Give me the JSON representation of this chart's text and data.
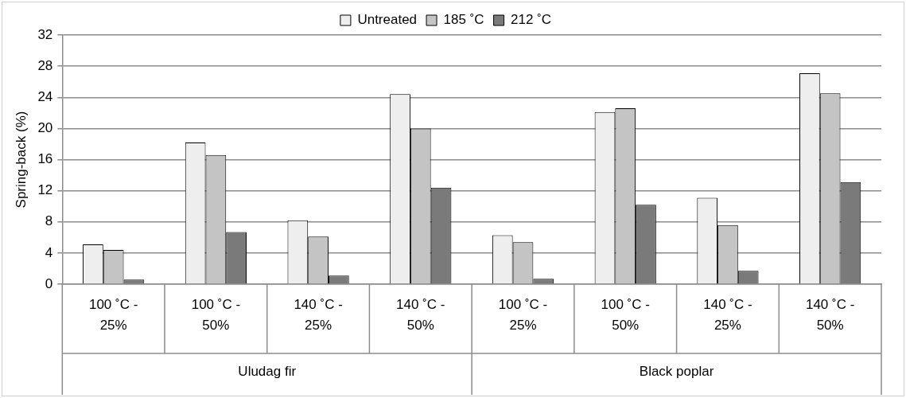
{
  "chart_data": {
    "type": "bar",
    "categories": [
      "100 ˚C - 25%",
      "100 ˚C - 50%",
      "140 ˚C - 25%",
      "140 ˚C - 50%",
      "100 ˚C - 25%",
      "100 ˚C - 50%",
      "140 ˚C - 25%",
      "140 ˚C - 50%"
    ],
    "series": [
      {
        "name": "Untreated",
        "color": "#eeeeee",
        "values": [
          5.1,
          18.2,
          8.2,
          24.4,
          6.3,
          22.1,
          11.1,
          27.1
        ]
      },
      {
        "name": "185 ˚C",
        "color": "#c4c4c4",
        "values": [
          4.4,
          16.6,
          6.1,
          20.0,
          5.4,
          22.6,
          7.6,
          24.5
        ]
      },
      {
        "name": "212 ˚C",
        "color": "#7a7a7a",
        "values": [
          0.6,
          6.7,
          1.1,
          12.4,
          0.7,
          10.2,
          1.7,
          13.1
        ]
      }
    ],
    "ylabel": "Spring-back (%)",
    "ylim": [
      0,
      32
    ],
    "yticks": [
      0,
      4,
      8,
      12,
      16,
      20,
      24,
      28,
      32
    ],
    "grid": "y",
    "legend": "top",
    "annotations": [
      "Uludag fir",
      "Black poplar"
    ]
  }
}
